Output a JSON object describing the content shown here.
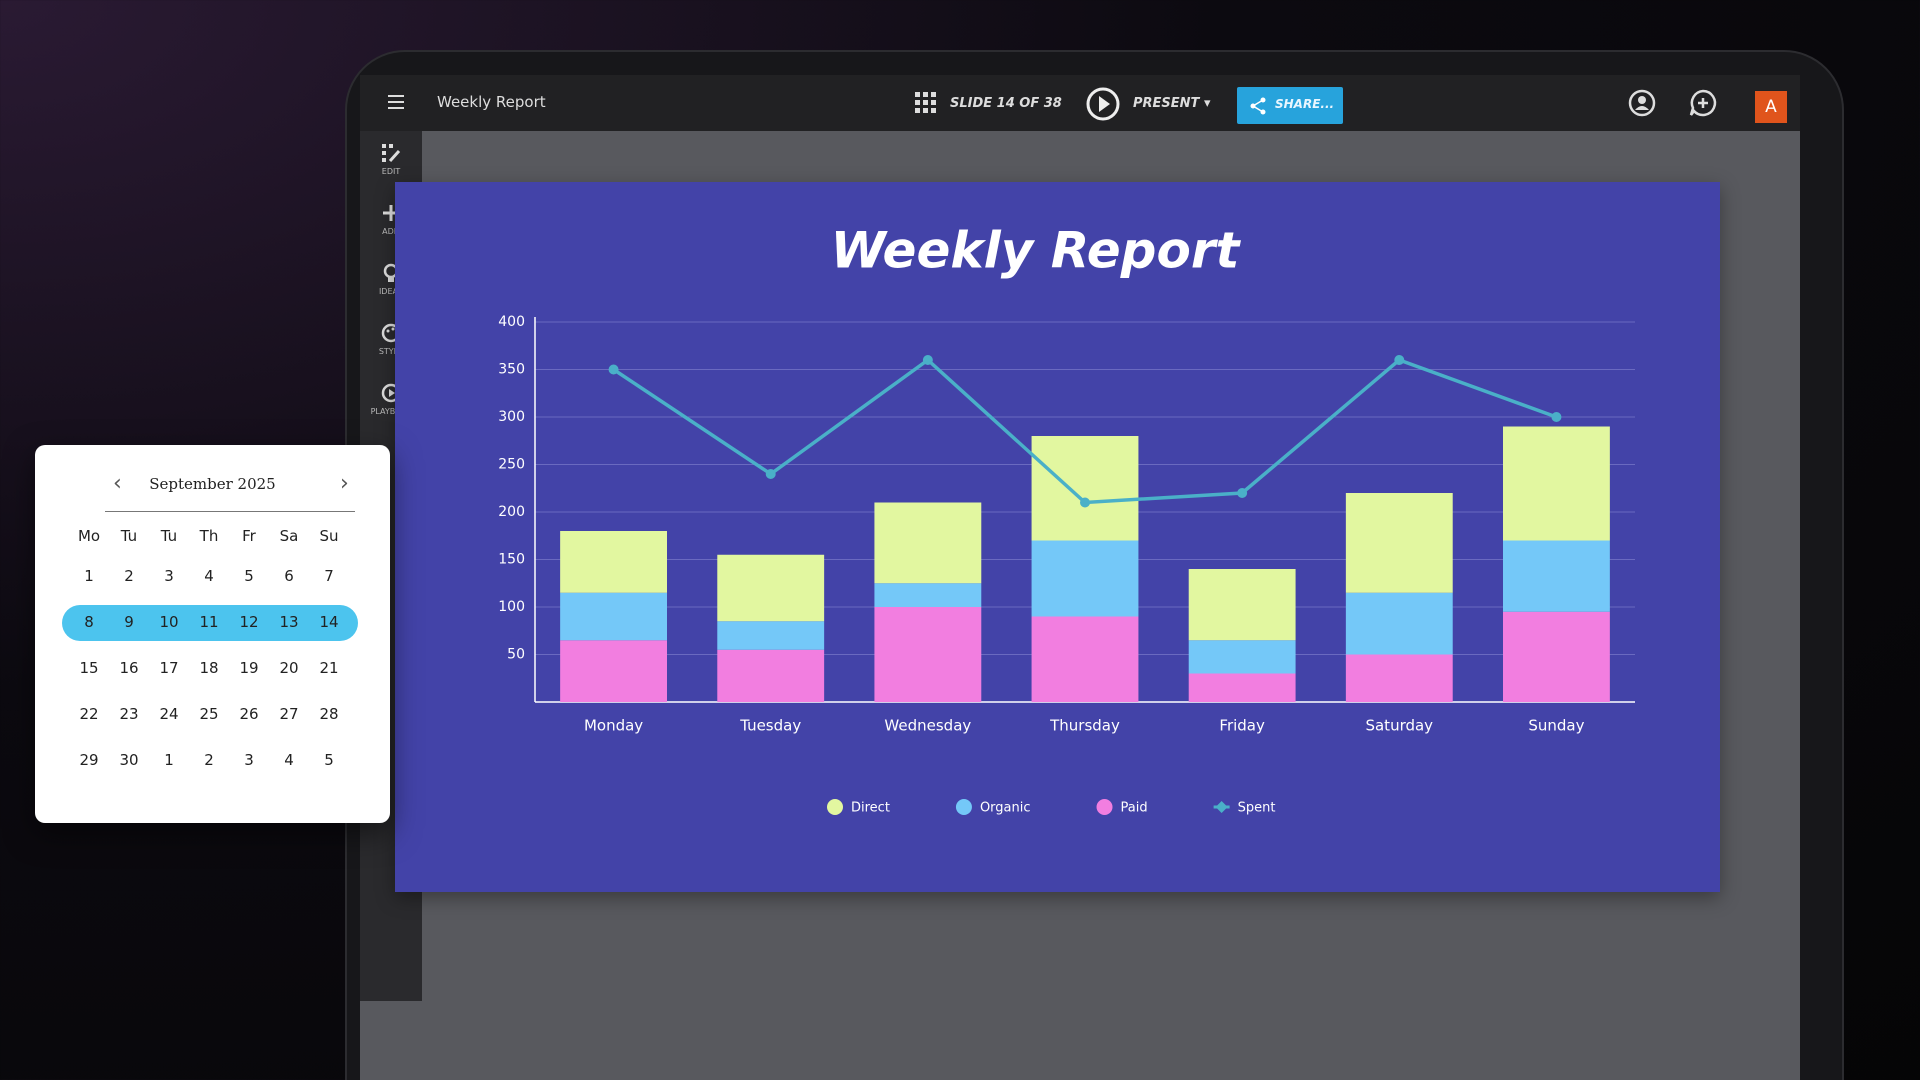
{
  "app": {
    "doc_title": "Weekly Report",
    "slide_counter": "SLIDE 14 OF 38",
    "present": "PRESENT",
    "share": "SHARE...",
    "avatar": "A",
    "sidebar": [
      "EDIT",
      "ADD",
      "IDEAS",
      "STYLE",
      "PLAYBACK"
    ]
  },
  "chart_data": {
    "type": "bar",
    "stacked": true,
    "title": "Weekly Report",
    "categories": [
      "Monday",
      "Tuesday",
      "Wednesday",
      "Thursday",
      "Friday",
      "Saturday",
      "Sunday"
    ],
    "series": [
      {
        "name": "Direct",
        "color": "#e2f7a0",
        "values": [
          65,
          70,
          85,
          110,
          75,
          105,
          120
        ]
      },
      {
        "name": "Organic",
        "color": "#74c8f8",
        "values": [
          50,
          30,
          25,
          80,
          35,
          65,
          75
        ]
      },
      {
        "name": "Paid",
        "color": "#f27ee0",
        "values": [
          65,
          55,
          100,
          90,
          30,
          50,
          95
        ]
      },
      {
        "name": "Spent",
        "color": "#4ab0c8",
        "type": "line",
        "values": [
          350,
          240,
          360,
          210,
          220,
          360,
          300
        ]
      }
    ],
    "ylim": [
      0,
      400
    ],
    "yticks": [
      50,
      100,
      150,
      200,
      250,
      300,
      350,
      400
    ],
    "grid": true,
    "legend": "bottom"
  },
  "calendar": {
    "month": "September 2025",
    "weekdays": [
      "Mo",
      "Tu",
      "Tu",
      "Th",
      "Fr",
      "Sa",
      "Su"
    ],
    "weeks": [
      [
        1,
        2,
        3,
        4,
        5,
        6,
        7
      ],
      [
        8,
        9,
        10,
        11,
        12,
        13,
        14
      ],
      [
        15,
        16,
        17,
        18,
        19,
        20,
        21
      ],
      [
        22,
        23,
        24,
        25,
        26,
        27,
        28
      ],
      [
        29,
        30,
        1,
        2,
        3,
        4,
        5
      ]
    ],
    "selected_week": 1
  }
}
